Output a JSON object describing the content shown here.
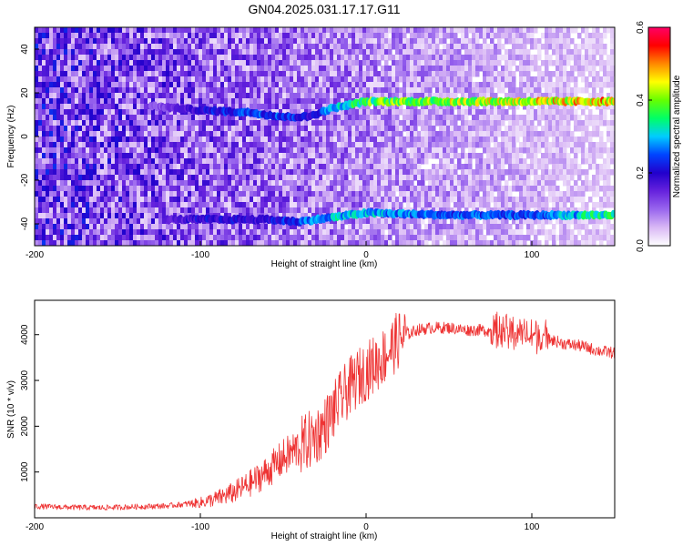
{
  "title": "GN04.2025.031.17.17.G11",
  "colors": {
    "snr_line": "#ee3333",
    "colormap": [
      "#ffffff",
      "#d9b8f5",
      "#9966ee",
      "#6622dd",
      "#2200cc",
      "#0044ff",
      "#00ccff",
      "#00ff66",
      "#66ff00",
      "#ffff00",
      "#ff8800",
      "#ff0000",
      "#ff0066"
    ]
  },
  "chart_data": [
    {
      "type": "heatmap",
      "xlabel": "Height of straight line (km)",
      "ylabel": "Frequency (Hz)",
      "xlim": [
        -200,
        150
      ],
      "ylim": [
        -50,
        50
      ],
      "x_ticks": [
        -200,
        -100,
        0,
        100
      ],
      "y_ticks": [
        -40,
        -20,
        0,
        20,
        40
      ],
      "colorbar": {
        "label": "Normalized spectral amplitude",
        "range": [
          0.0,
          0.6
        ],
        "ticks": [
          "0.0",
          "0.2",
          "0.4",
          "0.6"
        ]
      },
      "bands": [
        {
          "x": [
            -130,
            -100,
            -70,
            -50,
            -35,
            -20,
            0,
            50,
            100,
            150
          ],
          "freq": [
            14,
            12,
            11,
            9,
            9,
            13,
            16,
            16,
            16,
            16
          ],
          "amp": [
            0.1,
            0.2,
            0.25,
            0.25,
            0.2,
            0.3,
            0.38,
            0.42,
            0.45,
            0.48
          ]
        },
        {
          "x": [
            -120,
            -100,
            -60,
            -40,
            -20,
            0,
            50,
            100,
            150
          ],
          "freq": [
            -38,
            -38,
            -38,
            -39,
            -37,
            -35,
            -36,
            -36,
            -36
          ],
          "amp": [
            0.15,
            0.2,
            0.2,
            0.25,
            0.3,
            0.3,
            0.25,
            0.25,
            0.35
          ]
        }
      ]
    },
    {
      "type": "line",
      "xlabel": "Height of straight line (km)",
      "ylabel": "SNR (10 * v/v)",
      "xlim": [
        -200,
        150
      ],
      "ylim": [
        0,
        4750
      ],
      "x_ticks": [
        -200,
        -100,
        0,
        100
      ],
      "y_ticks": [
        1000,
        2000,
        3000,
        4000
      ],
      "series": [
        {
          "x": [
            -200,
            -180,
            -160,
            -140,
            -120,
            -100,
            -90,
            -80,
            -70,
            -60,
            -50,
            -40,
            -30,
            -25,
            -20,
            -15,
            -10,
            -5,
            0,
            5,
            10,
            15,
            20,
            25,
            30,
            40,
            50,
            60,
            70,
            80,
            90,
            100,
            110,
            120,
            130,
            140,
            150
          ],
          "y": [
            250,
            230,
            220,
            240,
            260,
            330,
            420,
            550,
            750,
            1000,
            1300,
            1550,
            1800,
            2000,
            2300,
            2600,
            2850,
            3050,
            3200,
            3350,
            3500,
            3700,
            3900,
            4000,
            4100,
            4150,
            4150,
            4100,
            4100,
            4050,
            4050,
            4000,
            3900,
            3800,
            3750,
            3650,
            3600
          ]
        }
      ]
    }
  ]
}
